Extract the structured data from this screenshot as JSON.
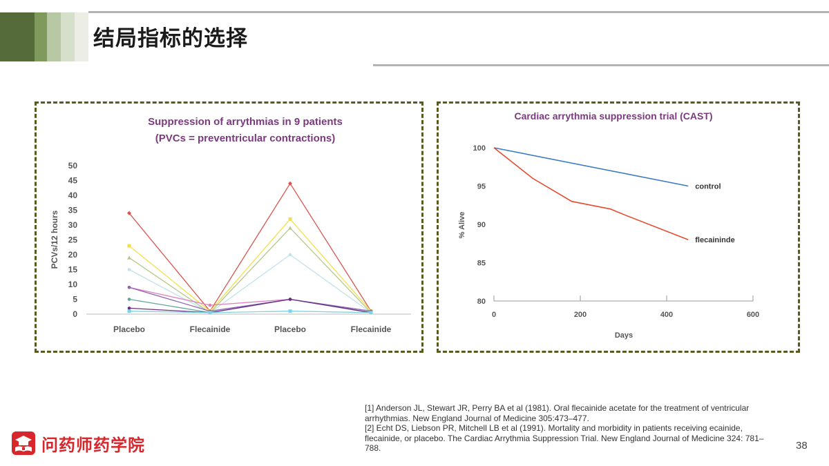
{
  "slide": {
    "title": "结局指标的选择",
    "page_number": "38",
    "colors": {
      "band": [
        "#556b3a",
        "#7f9a5c",
        "#b9c8a4",
        "#d6dfca",
        "#eceee6"
      ],
      "frame": "#5a5a1f",
      "logo": "#d7262c"
    }
  },
  "references": [
    "[1] Anderson JL, Stewart JR, Perry BA et al (1981). Oral flecainide acetate for the treatment of ventricular arrhythmias. New England Journal of Medicine 305:473–477.",
    "[2] Echt DS, Liebson PR, Mitchell LB et al (1991). Mortality and morbidity in patients receiving ecainide, flecainide, or placebo. The Cardiac Arrythmia Suppression Trial. New England Journal of Medicine 324: 781–788."
  ],
  "logo": {
    "text": "问药师药学院",
    "icon": "graduation-cap-book-icon"
  },
  "chart_data": [
    {
      "type": "line",
      "title": "Suppression of arrythmias in 9 patients",
      "subtitle": "(PVCs = preventricular contractions)",
      "xlabel": "",
      "ylabel": "PCVs/12 hours",
      "categories": [
        "Placebo",
        "Flecainide",
        "Placebo",
        "Flecainide"
      ],
      "ylim": [
        0,
        50
      ],
      "yticks": [
        0,
        5,
        10,
        15,
        20,
        25,
        30,
        35,
        40,
        45,
        50
      ],
      "grid": false,
      "series": [
        {
          "values": [
            34,
            1,
            44,
            1
          ],
          "color": "#d9534f",
          "marker": "diamond"
        },
        {
          "values": [
            23,
            1,
            32,
            1
          ],
          "color": "#f2e04a",
          "marker": "square"
        },
        {
          "values": [
            19,
            0.5,
            29,
            0.5
          ],
          "color": "#b4c98a",
          "marker": "triangle"
        },
        {
          "values": [
            15,
            0.5,
            20,
            0.5
          ],
          "color": "#bfe3ea",
          "marker": "cross"
        },
        {
          "values": [
            9,
            3,
            5,
            0.5
          ],
          "color": "#e07fbf",
          "marker": "circle"
        },
        {
          "values": [
            9,
            1,
            5,
            1
          ],
          "color": "#8e63b0",
          "marker": "star"
        },
        {
          "values": [
            5,
            0.5,
            5,
            0.5
          ],
          "color": "#5fa69a",
          "marker": "plus"
        },
        {
          "values": [
            2,
            0.5,
            5,
            0.5
          ],
          "color": "#6b2d84",
          "marker": "dash"
        },
        {
          "values": [
            1,
            0.5,
            1,
            0.5
          ],
          "color": "#7fd3e6",
          "marker": "square"
        }
      ]
    },
    {
      "type": "line",
      "title": "Cardiac arrythmia suppression trial (CAST)",
      "xlabel": "Days",
      "ylabel": "% Alive",
      "xlim": [
        0,
        600
      ],
      "ylim": [
        80,
        100
      ],
      "xticks": [
        0,
        200,
        400,
        600
      ],
      "yticks": [
        80,
        85,
        90,
        95,
        100
      ],
      "grid": false,
      "series": [
        {
          "name": "control",
          "x": [
            0,
            450
          ],
          "y": [
            100,
            95
          ],
          "color": "#3b7bc4"
        },
        {
          "name": "flecaininde",
          "x": [
            0,
            90,
            180,
            270,
            300,
            450
          ],
          "y": [
            100,
            96,
            93,
            92,
            91.3,
            88
          ],
          "color": "#e64a2e"
        }
      ]
    }
  ]
}
